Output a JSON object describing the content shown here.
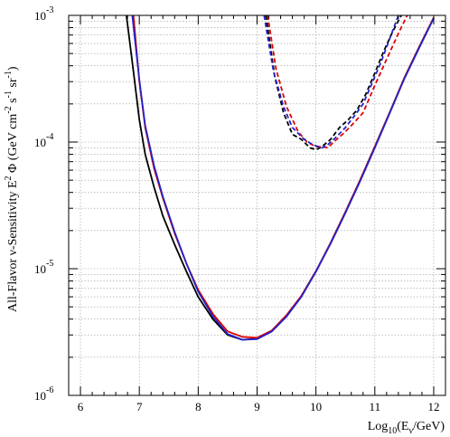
{
  "chart_data": {
    "type": "line",
    "title": "",
    "xlabel": {
      "base": "Log",
      "base_sub": "10",
      "paren_open": "(E",
      "nu_sub": "ν",
      "rest": "/GeV)"
    },
    "ylabel": {
      "main": "All-Flavor ν-Sensitivity E",
      "exp2": "2",
      "rest": " Φ (GeV cm",
      "exp_cm": "-2",
      "mid": " s",
      "exp_s": "-1",
      "mid2": " sr",
      "exp_sr": "-1",
      "close": ")"
    },
    "xlim": [
      5.8,
      12.2
    ],
    "ylim_log10": [
      -6,
      -3
    ],
    "y_scale": "log",
    "grid": true,
    "x_ticks": [
      {
        "value": 6,
        "label": "6"
      },
      {
        "value": 7,
        "label": "7"
      },
      {
        "value": 8,
        "label": "8"
      },
      {
        "value": 9,
        "label": "9"
      },
      {
        "value": 10,
        "label": "10"
      },
      {
        "value": 11,
        "label": "11"
      },
      {
        "value": 12,
        "label": "12"
      }
    ],
    "y_ticks": [
      {
        "log10": -6,
        "base": "10",
        "exp": "-6"
      },
      {
        "log10": -5,
        "base": "10",
        "exp": "-5"
      },
      {
        "log10": -4,
        "base": "10",
        "exp": "-4"
      },
      {
        "log10": -3,
        "base": "10",
        "exp": "-3"
      }
    ],
    "series": [
      {
        "color": "#000000",
        "style": "solid",
        "x": [
          6.78,
          6.9,
          7.0,
          7.1,
          7.25,
          7.4,
          7.6,
          7.8,
          8.0,
          8.25,
          8.5,
          8.75,
          9.0,
          9.25,
          9.5,
          9.75,
          10.0,
          10.25,
          10.5,
          10.75,
          11.0,
          11.25,
          11.5,
          11.75,
          12.0
        ],
        "y": [
          0.001,
          0.00036,
          0.00015,
          8e-05,
          4.4e-05,
          2.6e-05,
          1.55e-05,
          9.5e-06,
          6e-06,
          4e-06,
          3e-06,
          2.75e-06,
          2.8e-06,
          3.2e-06,
          4.2e-06,
          6e-06,
          9.5e-06,
          1.6e-05,
          2.8e-05,
          5e-05,
          9.2e-05,
          0.00017,
          0.00032,
          0.00056,
          0.00096
        ]
      },
      {
        "color": "#dd0000",
        "style": "solid",
        "x": [
          6.9,
          7.0,
          7.1,
          7.25,
          7.4,
          7.6,
          7.8,
          8.0,
          8.25,
          8.5,
          8.75,
          9.0,
          9.25,
          9.5,
          9.75,
          10.0,
          10.25,
          10.5,
          10.75,
          11.0,
          11.25,
          11.5,
          11.75,
          12.0
        ],
        "y": [
          0.001,
          0.0003,
          0.00013,
          6.2e-05,
          3.6e-05,
          1.9e-05,
          1.1e-05,
          6.8e-06,
          4.4e-06,
          3.2e-06,
          2.9e-06,
          2.85e-06,
          3.25e-06,
          4.3e-06,
          6.1e-06,
          9.6e-06,
          1.6e-05,
          2.8e-05,
          5e-05,
          9.2e-05,
          0.00017,
          0.00032,
          0.00056,
          0.00096
        ]
      },
      {
        "color": "#2222cc",
        "style": "solid",
        "x": [
          6.88,
          7.0,
          7.1,
          7.25,
          7.4,
          7.6,
          7.8,
          8.0,
          8.25,
          8.5,
          8.75,
          9.0,
          9.25,
          9.5,
          9.75,
          10.0,
          10.25,
          10.5,
          10.75,
          11.0,
          11.25,
          11.5,
          11.75,
          12.0
        ],
        "y": [
          0.001,
          0.00031,
          0.000135,
          6.5e-05,
          3.7e-05,
          1.95e-05,
          1.1e-05,
          6.6e-06,
          4.2e-06,
          3.05e-06,
          2.75e-06,
          2.78e-06,
          3.2e-06,
          4.2e-06,
          6e-06,
          9.5e-06,
          1.58e-05,
          2.75e-05,
          4.9e-05,
          9e-05,
          0.000168,
          0.000315,
          0.00055,
          0.00095
        ]
      },
      {
        "color": "#000000",
        "style": "dashed",
        "x": [
          9.15,
          9.3,
          9.45,
          9.6,
          9.75,
          9.9,
          10.0,
          10.1,
          10.25,
          10.4,
          10.55,
          10.7,
          10.85,
          11.0,
          11.15,
          11.3,
          11.45
        ],
        "y": [
          0.001,
          0.00033,
          0.00017,
          0.000115,
          0.000105,
          9e-05,
          8.7e-05,
          9.2e-05,
          0.000105,
          0.00013,
          0.00015,
          0.00018,
          0.00024,
          0.00035,
          0.00052,
          0.00074,
          0.001
        ]
      },
      {
        "color": "#dd0000",
        "style": "dashed",
        "x": [
          9.18,
          9.32,
          9.5,
          9.7,
          9.85,
          10.0,
          10.1,
          10.2,
          10.3,
          10.45,
          10.6,
          10.8,
          11.0,
          11.2,
          11.4,
          11.55
        ],
        "y": [
          0.001,
          0.00038,
          0.00019,
          0.00012,
          0.0001,
          9.2e-05,
          9.2e-05,
          9e-05,
          0.0001,
          0.000115,
          0.000135,
          0.00017,
          0.00028,
          0.00045,
          0.00072,
          0.001
        ]
      },
      {
        "color": "#2222cc",
        "style": "dashed",
        "x": [
          9.12,
          9.28,
          9.45,
          9.6,
          9.8,
          9.95,
          10.1,
          10.2,
          10.35,
          10.5,
          10.65,
          10.8,
          10.95,
          11.1,
          11.25,
          11.4
        ],
        "y": [
          0.001,
          0.00036,
          0.00019,
          0.00013,
          0.000105,
          9.5e-05,
          9e-05,
          9.5e-05,
          0.00011,
          0.00013,
          0.00016,
          0.0002,
          0.00029,
          0.00042,
          0.00065,
          0.001
        ]
      }
    ]
  }
}
